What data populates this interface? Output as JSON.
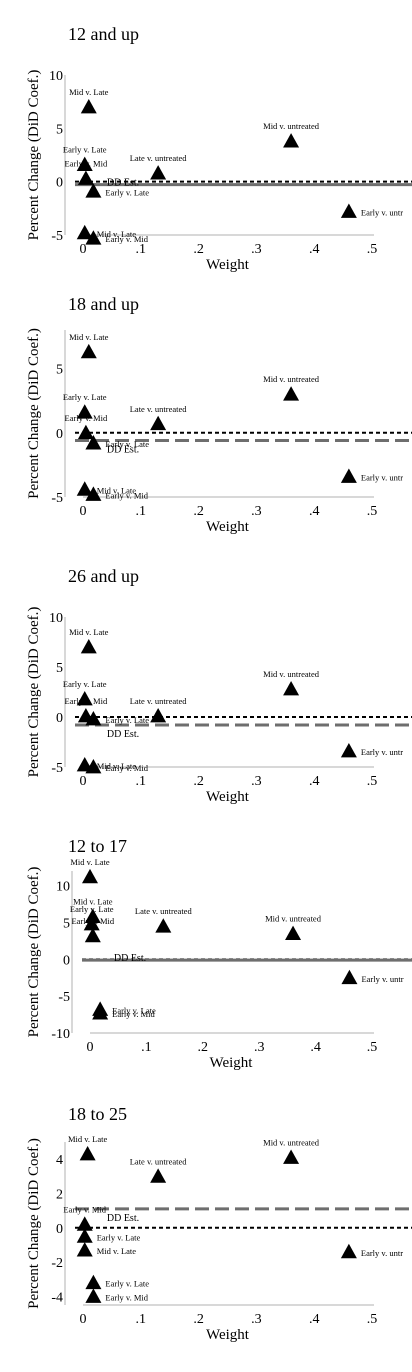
{
  "colors": {
    "marker": "#000000",
    "baseline": "#000000",
    "dd": "#6e6e6e",
    "axis": "#b0b0b0"
  },
  "chart_data": [
    {
      "type": "scatter",
      "title": "12 and up",
      "xlabel": "Weight",
      "ylabel": "Percent Change (DiD Coef.)",
      "xlim": [
        0,
        0.5
      ],
      "ylim": [
        -5,
        10
      ],
      "xticks": [
        0,
        0.1,
        0.2,
        0.3,
        0.4,
        0.5
      ],
      "xtick_labels": [
        "0",
        ".1",
        ".2",
        ".3",
        ".4",
        ".5"
      ],
      "yticks": [
        -5,
        0,
        5,
        10
      ],
      "ytick_labels": [
        "-5",
        "0",
        "5",
        "10"
      ],
      "baseline": 0,
      "dd_estimate": {
        "value": 0,
        "label": "DD Est."
      },
      "points": [
        {
          "x": 0.01,
          "y": 7.0,
          "label": "Mid v. Late"
        },
        {
          "x": 0.36,
          "y": 3.8,
          "label": "Mid v. untreated"
        },
        {
          "x": 0.003,
          "y": 1.6,
          "label": "Early v. Late"
        },
        {
          "x": 0.13,
          "y": 0.8,
          "label": "Late v. untreated"
        },
        {
          "x": 0.005,
          "y": 0.3,
          "label": "Early v. Mid"
        },
        {
          "x": 0.018,
          "y": -0.9,
          "label": "Early v. Late"
        },
        {
          "x": 0.46,
          "y": -2.8,
          "label": "Early v. untr"
        },
        {
          "x": 0.003,
          "y": -4.8,
          "label": "Mid v. Late"
        },
        {
          "x": 0.018,
          "y": -5.3,
          "label": "Early v. Mid"
        }
      ]
    },
    {
      "type": "scatter",
      "title": "18 and up",
      "xlabel": "Weight",
      "ylabel": "Percent Change (DiD Coef.)",
      "xlim": [
        0,
        0.5
      ],
      "ylim": [
        -5,
        8
      ],
      "xticks": [
        0,
        0.1,
        0.2,
        0.3,
        0.4,
        0.5
      ],
      "xtick_labels": [
        "0",
        ".1",
        ".2",
        ".3",
        ".4",
        ".5"
      ],
      "yticks": [
        -5,
        0,
        5
      ],
      "ytick_labels": [
        "-5",
        "0",
        "5"
      ],
      "baseline": 0,
      "dd_estimate": {
        "value": -0.6,
        "label": "DD Est."
      },
      "points": [
        {
          "x": 0.01,
          "y": 6.3,
          "label": "Mid v. Late"
        },
        {
          "x": 0.36,
          "y": 3.0,
          "label": "Mid v. untreated"
        },
        {
          "x": 0.003,
          "y": 1.6,
          "label": "Early v. Late"
        },
        {
          "x": 0.13,
          "y": 0.7,
          "label": "Late v. untreated"
        },
        {
          "x": 0.005,
          "y": 0.0,
          "label": "Early v. Mid"
        },
        {
          "x": 0.018,
          "y": -0.8,
          "label": "Early v. Late"
        },
        {
          "x": 0.46,
          "y": -3.4,
          "label": "Early v. untr"
        },
        {
          "x": 0.003,
          "y": -4.4,
          "label": "Mid v. Late"
        },
        {
          "x": 0.018,
          "y": -4.8,
          "label": "Early v. Mid"
        }
      ]
    },
    {
      "type": "scatter",
      "title": "26 and up",
      "xlabel": "Weight",
      "ylabel": "Percent Change (DiD Coef.)",
      "xlim": [
        0,
        0.5
      ],
      "ylim": [
        -5,
        10
      ],
      "xticks": [
        0,
        0.1,
        0.2,
        0.3,
        0.4,
        0.5
      ],
      "xtick_labels": [
        "0",
        ".1",
        ".2",
        ".3",
        ".4",
        ".5"
      ],
      "yticks": [
        -5,
        0,
        5,
        10
      ],
      "ytick_labels": [
        "-5",
        "0",
        "5",
        "10"
      ],
      "baseline": 0,
      "dd_estimate": {
        "value": -0.8,
        "label": "DD Est."
      },
      "points": [
        {
          "x": 0.01,
          "y": 7.0,
          "label": "Mid v. Late"
        },
        {
          "x": 0.36,
          "y": 2.8,
          "label": "Mid v. untreated"
        },
        {
          "x": 0.003,
          "y": 1.8,
          "label": "Early v. Late"
        },
        {
          "x": 0.13,
          "y": 0.1,
          "label": "Late v. untreated"
        },
        {
          "x": 0.005,
          "y": 0.1,
          "label": "Early v. Mid"
        },
        {
          "x": 0.018,
          "y": -0.2,
          "label": "Early v. Late"
        },
        {
          "x": 0.46,
          "y": -3.4,
          "label": "Early v. untr"
        },
        {
          "x": 0.003,
          "y": -4.8,
          "label": "Mid v. Late"
        },
        {
          "x": 0.018,
          "y": -5.0,
          "label": "Early v. Mid"
        }
      ]
    },
    {
      "type": "scatter",
      "title": "12 to 17",
      "xlabel": "Weight",
      "ylabel": "Percent Change (DiD Coef.)",
      "xlim": [
        0,
        0.5
      ],
      "ylim": [
        -10,
        12
      ],
      "xticks": [
        0,
        0.1,
        0.2,
        0.3,
        0.4,
        0.5
      ],
      "xtick_labels": [
        "0",
        ".1",
        ".2",
        ".3",
        ".4",
        ".5"
      ],
      "yticks": [
        -10,
        -5,
        0,
        5,
        10
      ],
      "ytick_labels": [
        "-10",
        "-5",
        "0",
        "5",
        "10"
      ],
      "baseline": 0,
      "dd_estimate": {
        "value": 0.3,
        "label": "DD Est."
      },
      "points": [
        {
          "x": 0.0,
          "y": 11.2,
          "label": "Mid v. Late"
        },
        {
          "x": 0.005,
          "y": 5.8,
          "label": "Mid v. Late"
        },
        {
          "x": 0.36,
          "y": 3.5,
          "label": "Mid v. untreated"
        },
        {
          "x": 0.13,
          "y": 4.5,
          "label": "Late v. untreated"
        },
        {
          "x": 0.003,
          "y": 4.8,
          "label": "Early v. Late"
        },
        {
          "x": 0.005,
          "y": 3.2,
          "label": "Early v. Mid"
        },
        {
          "x": 0.46,
          "y": -2.5,
          "label": "Early v. untr"
        },
        {
          "x": 0.018,
          "y": -6.8,
          "label": "Early v. Late"
        },
        {
          "x": 0.018,
          "y": -7.3,
          "label": "Early v. Mid"
        }
      ]
    },
    {
      "type": "scatter",
      "title": "18 to 25",
      "xlabel": "Weight",
      "ylabel": "Percent Change (DiD Coef.)",
      "xlim": [
        0,
        0.5
      ],
      "ylim": [
        -4.5,
        5
      ],
      "xticks": [
        0,
        0.1,
        0.2,
        0.3,
        0.4,
        0.5
      ],
      "xtick_labels": [
        "0",
        ".1",
        ".2",
        ".3",
        ".4",
        ".5"
      ],
      "yticks": [
        -4,
        -2,
        0,
        2,
        4
      ],
      "ytick_labels": [
        "-4",
        "-2",
        "0",
        "2",
        "4"
      ],
      "baseline": 0,
      "dd_estimate": {
        "value": 1.1,
        "label": "DD Est."
      },
      "points": [
        {
          "x": 0.008,
          "y": 4.3,
          "label": "Mid v. Late"
        },
        {
          "x": 0.36,
          "y": 4.1,
          "label": "Mid v. untreated"
        },
        {
          "x": 0.13,
          "y": 3.0,
          "label": "Late v. untreated"
        },
        {
          "x": 0.003,
          "y": 0.2,
          "label": "Early v. Mid"
        },
        {
          "x": 0.003,
          "y": -0.5,
          "label": "Early v. Late"
        },
        {
          "x": 0.003,
          "y": -1.3,
          "label": "Mid v. Late"
        },
        {
          "x": 0.46,
          "y": -1.4,
          "label": "Early v. untr"
        },
        {
          "x": 0.018,
          "y": -3.2,
          "label": "Early v. Late"
        },
        {
          "x": 0.018,
          "y": -4.0,
          "label": "Early v. Mid"
        }
      ]
    }
  ]
}
